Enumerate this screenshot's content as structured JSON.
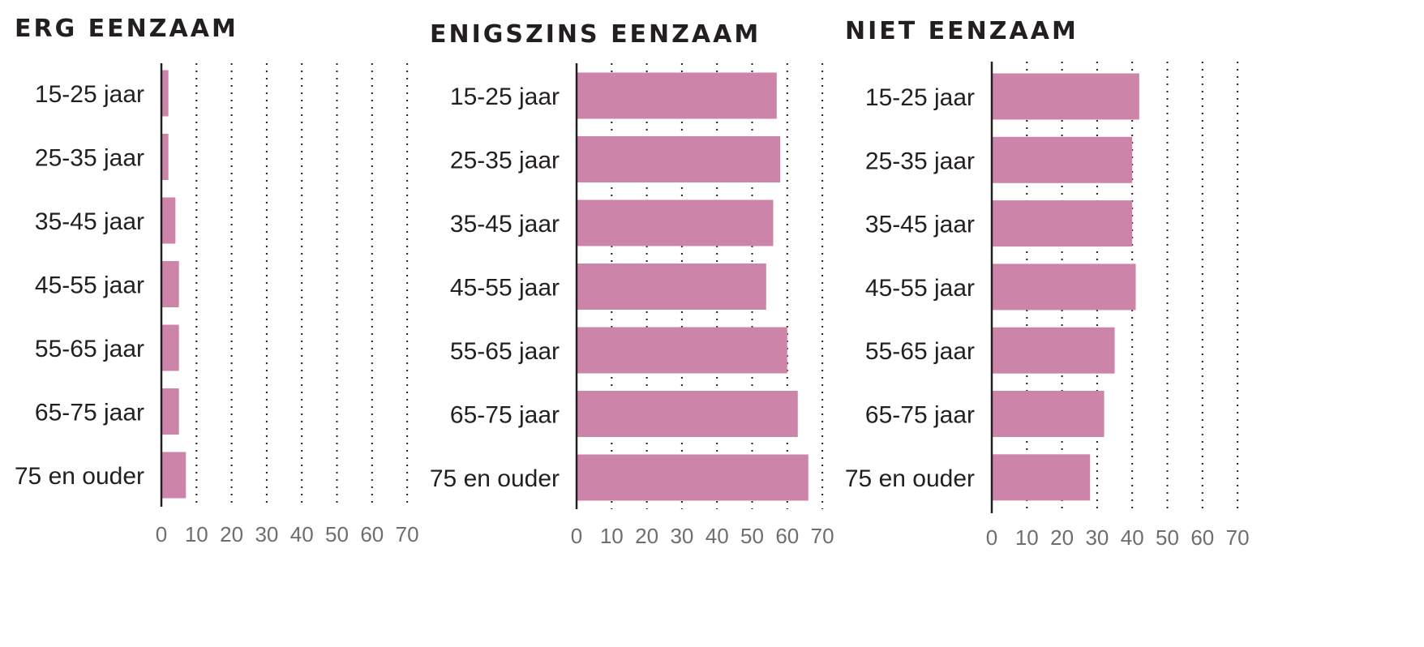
{
  "chart_data": [
    {
      "type": "bar",
      "orientation": "horizontal",
      "title": "ERG EENZAAM",
      "categories": [
        "15-25 jaar",
        "25-35 jaar",
        "35-45 jaar",
        "45-55 jaar",
        "55-65 jaar",
        "65-75 jaar",
        "75 en ouder"
      ],
      "values": [
        2,
        2,
        4,
        5,
        5,
        5,
        7
      ],
      "xlim": [
        0,
        70
      ],
      "xticks": [
        "0",
        "10",
        "20",
        "30",
        "40",
        "50",
        "60",
        "70"
      ],
      "grid": "vertical dotted",
      "bar_color": "#cc85a8"
    },
    {
      "type": "bar",
      "orientation": "horizontal",
      "title": "ENIGSZINS EENZAAM",
      "categories": [
        "15-25 jaar",
        "25-35 jaar",
        "35-45 jaar",
        "45-55 jaar",
        "55-65 jaar",
        "65-75 jaar",
        "75 en ouder"
      ],
      "values": [
        57,
        58,
        56,
        54,
        60,
        63,
        66
      ],
      "xlim": [
        0,
        70
      ],
      "xticks": [
        "0",
        "10",
        "20",
        "30",
        "40",
        "50",
        "60",
        "70"
      ],
      "grid": "vertical dotted",
      "bar_color": "#cc85a8"
    },
    {
      "type": "bar",
      "orientation": "horizontal",
      "title": "NIET EENZAAM",
      "categories": [
        "15-25 jaar",
        "25-35 jaar",
        "35-45 jaar",
        "45-55 jaar",
        "55-65 jaar",
        "65-75 jaar",
        "75 en ouder"
      ],
      "values": [
        42,
        40,
        40,
        41,
        35,
        32,
        28
      ],
      "xlim": [
        0,
        70
      ],
      "xticks": [
        "0",
        "10",
        "20",
        "30",
        "40",
        "50",
        "60",
        "70"
      ],
      "grid": "vertical dotted",
      "bar_color": "#cc85a8"
    }
  ]
}
